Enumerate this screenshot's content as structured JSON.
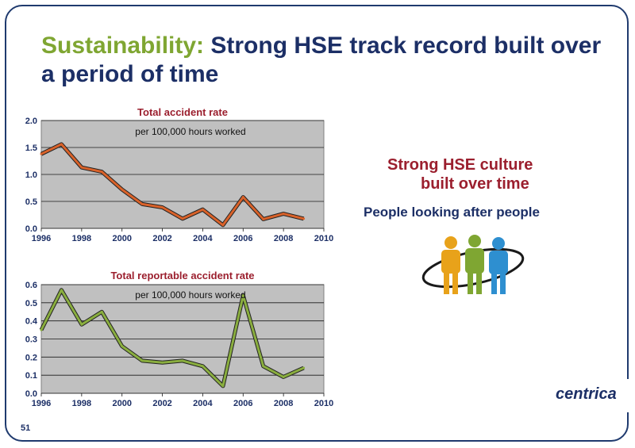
{
  "slide": {
    "title_accent": "Sustainability:",
    "title_rest": " Strong HSE track record built over a period of time",
    "culture_line1": "Strong HSE culture",
    "culture_line2": "built over time",
    "people_line": "People looking after people",
    "brand": "centrica",
    "page_number": "51"
  },
  "colors": {
    "title_text": "#1c2f66",
    "title_accent": "#7fa632",
    "chart_title": "#9b1f2e",
    "plot_bg": "#c0c0c0",
    "line1": "#d9622a",
    "line2": "#8aae3f"
  },
  "chart_data": [
    {
      "type": "line",
      "title": "Total accident rate",
      "annotation": "per 100,000 hours worked",
      "xlim": [
        1996,
        2010
      ],
      "ylim": [
        0.0,
        2.0
      ],
      "x_ticks": [
        "1996",
        "1998",
        "2000",
        "2002",
        "2004",
        "2006",
        "2008",
        "2010"
      ],
      "y_ticks": [
        "0.0",
        "0.5",
        "1.0",
        "1.5",
        "2.0"
      ],
      "grid": true,
      "x": [
        1996,
        1997,
        1998,
        1999,
        2000,
        2001,
        2002,
        2003,
        2004,
        2005,
        2006,
        2007,
        2008,
        2009
      ],
      "values": [
        1.38,
        1.56,
        1.13,
        1.05,
        0.72,
        0.45,
        0.39,
        0.18,
        0.35,
        0.06,
        0.58,
        0.17,
        0.27,
        0.18
      ]
    },
    {
      "type": "line",
      "title": "Total reportable accident rate",
      "annotation": "per 100,000 hours worked",
      "xlim": [
        1996,
        2010
      ],
      "ylim": [
        0.0,
        0.6
      ],
      "x_ticks": [
        "1996",
        "1998",
        "2000",
        "2002",
        "2004",
        "2006",
        "2008",
        "2010"
      ],
      "y_ticks": [
        "0.0",
        "0.1",
        "0.2",
        "0.3",
        "0.4",
        "0.5",
        "0.6"
      ],
      "grid": true,
      "x": [
        1996,
        1997,
        1998,
        1999,
        2000,
        2001,
        2002,
        2003,
        2004,
        2005,
        2006,
        2007,
        2008,
        2009
      ],
      "values": [
        0.35,
        0.57,
        0.38,
        0.45,
        0.26,
        0.18,
        0.17,
        0.18,
        0.15,
        0.04,
        0.54,
        0.15,
        0.09,
        0.14
      ]
    }
  ]
}
